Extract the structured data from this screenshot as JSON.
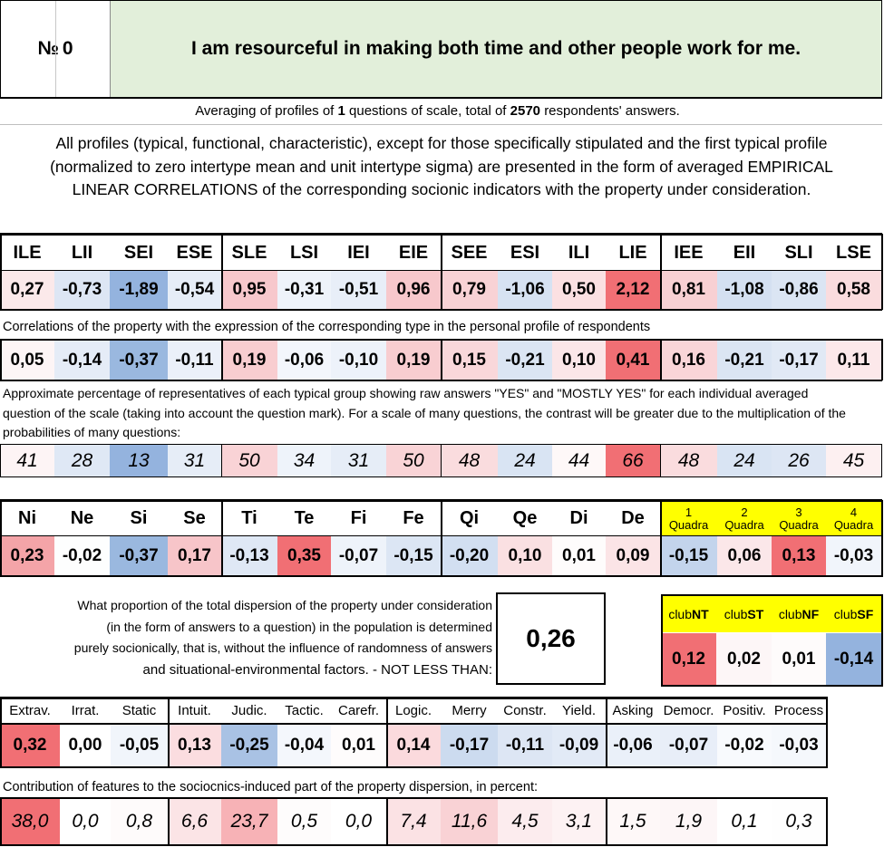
{
  "title": {
    "number_label": "№",
    "number": "0",
    "question": "I am resourceful in making both time and other people work for me."
  },
  "averaging": {
    "prefix": "Averaging of profiles of",
    "questions": "1",
    "middle": "questions of scale, total of",
    "answers": "2570",
    "suffix": "respondents' answers."
  },
  "intro": "All profiles (typical, functional, characteristic), except for those specifically stipulated and the first typical profile (normalized to zero intertype mean and unit intertype sigma) are presented in the form of averaged EMPIRICAL LINEAR CORRELATIONS of the corresponding socionic indicators with the property under consideration.",
  "types": {
    "headers": [
      "ILE",
      "LII",
      "SEI",
      "ESE",
      "SLE",
      "LSI",
      "IEI",
      "EIE",
      "SEE",
      "ESI",
      "ILI",
      "LIE",
      "IEE",
      "EII",
      "SLI",
      "LSE"
    ],
    "profile": [
      "0,27",
      "-0,73",
      "-1,89",
      "-0,54",
      "0,95",
      "-0,31",
      "-0,51",
      "0,96",
      "0,79",
      "-1,06",
      "0,50",
      "2,12",
      "0,81",
      "-1,08",
      "-0,86",
      "0,58"
    ],
    "profile_colors": [
      "#fbe9ea",
      "#dde6f4",
      "#94b3de",
      "#e6edf7",
      "#f7c8cc",
      "#eef3fa",
      "#e8eef8",
      "#f7c8cc",
      "#f8d2d5",
      "#d6e2f2",
      "#fbe0e2",
      "#f16f74",
      "#f8d0d3",
      "#d4e0f1",
      "#dbe5f3",
      "#fadcde"
    ],
    "corr_caption": "Correlations of the property with the expression of the corresponding type in the personal profile of respondents",
    "correlations": [
      "0,05",
      "-0,14",
      "-0,37",
      "-0,11",
      "0,19",
      "-0,06",
      "-0,10",
      "0,19",
      "0,15",
      "-0,21",
      "0,10",
      "0,41",
      "0,16",
      "-0,21",
      "-0,17",
      "0,11"
    ],
    "corr_colors": [
      "#fdf5f6",
      "#e5ecf7",
      "#9ab8df",
      "#ebf0f9",
      "#f8cdd0",
      "#f3f6fc",
      "#edf2fa",
      "#f8cdd0",
      "#f9d7da",
      "#dbe5f3",
      "#fbe6e8",
      "#f16f74",
      "#f9d5d8",
      "#dbe5f3",
      "#e1e9f5",
      "#fce8ea"
    ],
    "pct_caption": "Approximate percentage of representatives of each typical group showing raw answers \"YES\" and \"MOSTLY YES\" for each individual averaged question of the scale (taking into account the question mark). For a scale of many questions, the contrast will be greater due to the multiplication of the probabilities of many questions:",
    "percentages": [
      "41",
      "28",
      "13",
      "31",
      "50",
      "34",
      "31",
      "50",
      "48",
      "24",
      "44",
      "66",
      "48",
      "24",
      "26",
      "45"
    ],
    "pct_colors": [
      "#fdf4f5",
      "#dfe8f5",
      "#94b3de",
      "#e6edf7",
      "#f9d3d6",
      "#eef3fa",
      "#e6edf7",
      "#f9d3d6",
      "#fadcde",
      "#d9e4f3",
      "#fef8f8",
      "#f16f74",
      "#fadcde",
      "#d9e4f3",
      "#dde6f4",
      "#fdf0f1"
    ]
  },
  "functions": {
    "headers": [
      "Ni",
      "Ne",
      "Si",
      "Se",
      "Ti",
      "Te",
      "Fi",
      "Fe",
      "Qi",
      "Qe",
      "Di",
      "De"
    ],
    "values": [
      "0,23",
      "-0,02",
      "-0,37",
      "0,17",
      "-0,13",
      "0,35",
      "-0,07",
      "-0,15",
      "-0,20",
      "0,10",
      "0,01",
      "0,09"
    ],
    "colors": [
      "#f4a4a8",
      "#fdfefe",
      "#9ab8df",
      "#f7c5c9",
      "#dfe8f5",
      "#f16f74",
      "#eef3fa",
      "#dce6f4",
      "#d2dff1",
      "#fae0e2",
      "#fefcfc",
      "#fbe4e6"
    ]
  },
  "quadras": {
    "numbers": [
      "1",
      "2",
      "3",
      "4"
    ],
    "word": "Quadra",
    "header_color": "#ffff00",
    "values": [
      "-0,15",
      "0,06",
      "0,13",
      "-0,03"
    ],
    "colors": [
      "#c3d4ec",
      "#fbe7e9",
      "#f16f74",
      "#f1f5fb"
    ]
  },
  "dispersion": {
    "text_lines": [
      "What proportion of the total dispersion of the property under consideration",
      "(in the form of answers to a question) in the population is determined",
      "purely socionically, that is, without the influence of randomness of answers",
      "and situational-environmental factors. - NOT LESS THAN:"
    ],
    "value": "0,26",
    "value_color": "#ffff00"
  },
  "clubs": {
    "prefix": "club",
    "suffixes": [
      "NT",
      "ST",
      "NF",
      "SF"
    ],
    "header_color": "#ffff00",
    "values": [
      "0,12",
      "0,02",
      "0,01",
      "-0,14"
    ],
    "colors": [
      "#f16f74",
      "#fdf6f7",
      "#fefbfb",
      "#94b3de"
    ]
  },
  "traits": {
    "headers": [
      "Extrav.",
      "Irrat.",
      "Static",
      "Intuit.",
      "Judic.",
      "Tactic.",
      "Carefr.",
      "Logic.",
      "Merry",
      "Constr.",
      "Yield.",
      "Asking",
      "Democr.",
      "Positiv.",
      "Process"
    ],
    "values": [
      "0,32",
      "0,00",
      "-0,05",
      "0,13",
      "-0,25",
      "-0,04",
      "0,01",
      "0,14",
      "-0,17",
      "-0,11",
      "-0,09",
      "-0,06",
      "-0,07",
      "-0,02",
      "-0,03"
    ],
    "colors": [
      "#f16f74",
      "#ffffff",
      "#f1f5fb",
      "#fbdde0",
      "#a9c2e4",
      "#f4f7fc",
      "#fefcfc",
      "#fbdadd",
      "#ccdbef",
      "#dde6f4",
      "#e2eaf6",
      "#eaf0f9",
      "#e8eef8",
      "#f8fafd",
      "#f5f8fc"
    ],
    "contrib_caption": "Contribution of features to the sociocnics-induced part of the property dispersion, in percent:",
    "contributions": [
      "38,0",
      "0,0",
      "0,8",
      "6,6",
      "23,7",
      "0,5",
      "0,0",
      "7,4",
      "11,6",
      "4,5",
      "3,1",
      "1,5",
      "1,9",
      "0,1",
      "0,3"
    ],
    "contrib_colors": [
      "#f16f74",
      "#ffffff",
      "#fefbfb",
      "#fbe4e6",
      "#f7b2b6",
      "#fefcfc",
      "#ffffff",
      "#fbe2e4",
      "#f9d2d5",
      "#fcecee",
      "#fdf2f3",
      "#fef8f8",
      "#fdf6f7",
      "#ffffff",
      "#fefefe"
    ]
  }
}
